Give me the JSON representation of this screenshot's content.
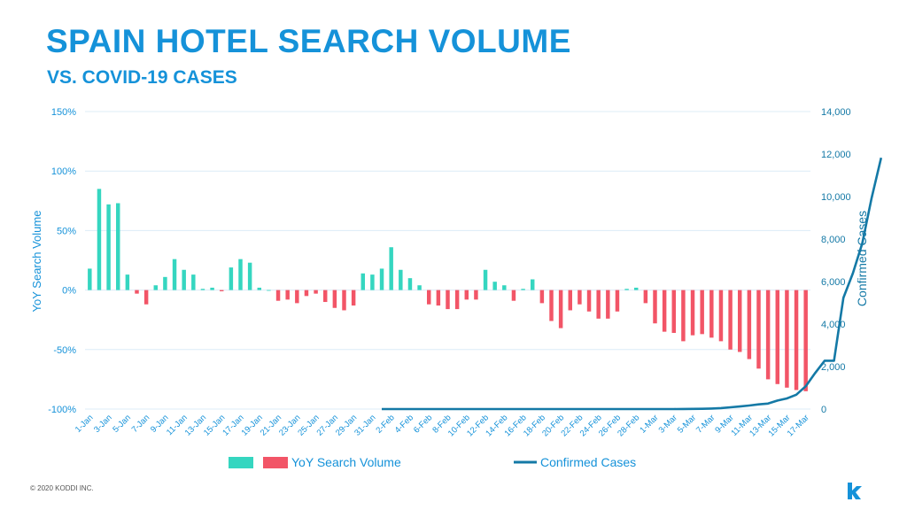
{
  "header": {
    "title": "SPAIN HOTEL SEARCH VOLUME",
    "subtitle": "VS. COVID-19 CASES"
  },
  "footer": {
    "copyright": "© 2020 KODDI INC."
  },
  "logo": {
    "icon": "koddi-k-logo-icon",
    "letter": "k"
  },
  "colors": {
    "positive": "#35d6c0",
    "negative": "#f25567",
    "cases": "#1479a6",
    "grid": "#dcecf7",
    "axis_text": "#1592d9",
    "title": "#1592d9"
  },
  "chart_data": {
    "type": "bar",
    "x_tick_labels": [
      "1-Jan",
      "3-Jan",
      "5-Jan",
      "7-Jan",
      "9-Jan",
      "11-Jan",
      "13-Jan",
      "15-Jan",
      "17-Jan",
      "19-Jan",
      "21-Jan",
      "23-Jan",
      "25-Jan",
      "27-Jan",
      "29-Jan",
      "31-Jan",
      "2-Feb",
      "4-Feb",
      "6-Feb",
      "8-Feb",
      "10-Feb",
      "12-Feb",
      "14-Feb",
      "16-Feb",
      "18-Feb",
      "20-Feb",
      "22-Feb",
      "24-Feb",
      "26-Feb",
      "28-Feb",
      "1-Mar",
      "3-Mar",
      "5-Mar",
      "7-Mar",
      "9-Mar",
      "11-Mar",
      "13-Mar",
      "15-Mar",
      "17-Mar"
    ],
    "y_left": {
      "label": "YoY Search Volume",
      "ticks": [
        "150%",
        "100%",
        "50%",
        "0%",
        "-50%",
        "-100%"
      ],
      "range": [
        -100,
        150
      ]
    },
    "y_right": {
      "label": "Confirmed Cases",
      "ticks": [
        "14,000",
        "12,000",
        "10,000",
        "8,000",
        "6,000",
        "4,000",
        "2,000",
        "0"
      ],
      "range": [
        0,
        14000
      ]
    },
    "series": [
      {
        "name": "YoY Search Volume",
        "type": "bar",
        "axis": "left",
        "values": [
          18,
          85,
          72,
          73,
          13,
          -3,
          -12,
          4,
          11,
          26,
          17,
          13,
          1,
          2,
          -1,
          19,
          26,
          23,
          2,
          0,
          -9,
          -8,
          -11,
          -5,
          -3,
          -10,
          -15,
          -17,
          -13,
          14,
          13,
          18,
          36,
          17,
          10,
          4,
          -12,
          -13,
          -16,
          -16,
          -8,
          -8,
          17,
          7,
          4,
          -9,
          1,
          9,
          -11,
          -26,
          -32,
          -17,
          -12,
          -18,
          -24,
          -24,
          -18,
          1,
          2,
          -11,
          -28,
          -35,
          -36,
          -43,
          -38,
          -37,
          -40,
          -43,
          -50,
          -52,
          -58,
          -66,
          -75,
          -79,
          -82,
          -84,
          -85
        ],
        "dates_note": "daily 1-Jan to 17-Mar"
      },
      {
        "name": "Confirmed Cases",
        "type": "line",
        "axis": "right",
        "start_index": 31,
        "values": [
          0,
          0,
          0,
          0,
          0,
          0,
          0,
          0,
          0,
          0,
          0,
          0,
          0,
          0,
          0,
          0,
          0,
          0,
          0,
          0,
          0,
          0,
          0,
          0,
          0,
          0,
          0,
          0,
          0,
          0,
          1,
          2,
          5,
          8,
          13,
          25,
          45,
          85,
          120,
          165,
          222,
          259,
          400,
          500,
          673,
          1073,
          1695,
          2277,
          2277,
          5232,
          6391,
          7798,
          9942,
          11826
        ]
      }
    ],
    "legend": {
      "placement": "bottom",
      "items": [
        "YoY Search Volume",
        "Confirmed Cases"
      ]
    }
  }
}
